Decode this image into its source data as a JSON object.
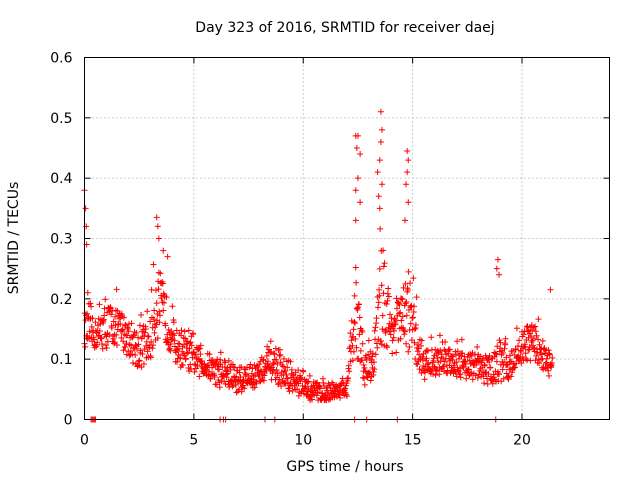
{
  "chart_data": {
    "type": "scatter",
    "title": "Day 323 of 2016, SRMTID for receiver daej",
    "xlabel": "GPS time / hours",
    "ylabel": "SRMTID / TECUs",
    "xlim": [
      0,
      24
    ],
    "ylim": [
      0,
      0.6
    ],
    "x_ticks": [
      0,
      5,
      10,
      15,
      20
    ],
    "y_ticks": [
      0,
      0.1,
      0.2,
      0.3,
      0.4,
      0.5,
      0.6
    ],
    "x_tick_labels": [
      "0",
      "5",
      "10",
      "15",
      "20"
    ],
    "y_tick_labels": [
      "0",
      "0.1",
      "0.2",
      "0.3",
      "0.4",
      "0.5",
      "0.6"
    ],
    "grid": true,
    "marker": "+",
    "color": "#ff0000",
    "series": [
      {
        "name": "SRMTID",
        "envelope": [
          {
            "x": 0.0,
            "lo": 0.1,
            "hi": 0.2
          },
          {
            "x": 0.5,
            "lo": 0.1,
            "hi": 0.18
          },
          {
            "x": 1.0,
            "lo": 0.09,
            "hi": 0.22
          },
          {
            "x": 1.5,
            "lo": 0.1,
            "hi": 0.21
          },
          {
            "x": 2.0,
            "lo": 0.08,
            "hi": 0.19
          },
          {
            "x": 2.5,
            "lo": 0.06,
            "hi": 0.17
          },
          {
            "x": 3.0,
            "lo": 0.07,
            "hi": 0.19
          },
          {
            "x": 3.3,
            "lo": 0.09,
            "hi": 0.31
          },
          {
            "x": 3.7,
            "lo": 0.1,
            "hi": 0.24
          },
          {
            "x": 4.2,
            "lo": 0.07,
            "hi": 0.17
          },
          {
            "x": 5.0,
            "lo": 0.06,
            "hi": 0.14
          },
          {
            "x": 5.5,
            "lo": 0.05,
            "hi": 0.13
          },
          {
            "x": 6.0,
            "lo": 0.04,
            "hi": 0.12
          },
          {
            "x": 6.5,
            "lo": 0.03,
            "hi": 0.12
          },
          {
            "x": 7.0,
            "lo": 0.03,
            "hi": 0.1
          },
          {
            "x": 8.0,
            "lo": 0.04,
            "hi": 0.11
          },
          {
            "x": 8.5,
            "lo": 0.05,
            "hi": 0.13
          },
          {
            "x": 9.0,
            "lo": 0.04,
            "hi": 0.11
          },
          {
            "x": 10.0,
            "lo": 0.02,
            "hi": 0.08
          },
          {
            "x": 11.0,
            "lo": 0.02,
            "hi": 0.07
          },
          {
            "x": 12.0,
            "lo": 0.03,
            "hi": 0.07
          },
          {
            "x": 12.4,
            "lo": 0.06,
            "hi": 0.3
          },
          {
            "x": 12.8,
            "lo": 0.04,
            "hi": 0.12
          },
          {
            "x": 13.2,
            "lo": 0.05,
            "hi": 0.14
          },
          {
            "x": 13.6,
            "lo": 0.06,
            "hi": 0.36
          },
          {
            "x": 14.0,
            "lo": 0.08,
            "hi": 0.22
          },
          {
            "x": 14.4,
            "lo": 0.08,
            "hi": 0.24
          },
          {
            "x": 14.8,
            "lo": 0.07,
            "hi": 0.28
          },
          {
            "x": 15.5,
            "lo": 0.05,
            "hi": 0.13
          },
          {
            "x": 16.5,
            "lo": 0.06,
            "hi": 0.14
          },
          {
            "x": 17.5,
            "lo": 0.05,
            "hi": 0.13
          },
          {
            "x": 18.5,
            "lo": 0.04,
            "hi": 0.12
          },
          {
            "x": 19.0,
            "lo": 0.04,
            "hi": 0.14
          },
          {
            "x": 19.5,
            "lo": 0.05,
            "hi": 0.13
          },
          {
            "x": 20.0,
            "lo": 0.07,
            "hi": 0.17
          },
          {
            "x": 20.5,
            "lo": 0.08,
            "hi": 0.18
          },
          {
            "x": 21.0,
            "lo": 0.06,
            "hi": 0.15
          },
          {
            "x": 21.4,
            "lo": 0.05,
            "hi": 0.12
          }
        ],
        "outliers": [
          [
            0.0,
            0.38
          ],
          [
            0.05,
            0.35
          ],
          [
            0.08,
            0.32
          ],
          [
            0.1,
            0.29
          ],
          [
            0.15,
            0.21
          ],
          [
            3.3,
            0.335
          ],
          [
            3.35,
            0.32
          ],
          [
            3.4,
            0.3
          ],
          [
            3.6,
            0.28
          ],
          [
            3.8,
            0.27
          ],
          [
            12.4,
            0.47
          ],
          [
            12.5,
            0.47
          ],
          [
            12.45,
            0.45
          ],
          [
            12.6,
            0.44
          ],
          [
            12.5,
            0.4
          ],
          [
            12.4,
            0.38
          ],
          [
            12.6,
            0.36
          ],
          [
            12.4,
            0.33
          ],
          [
            13.55,
            0.51
          ],
          [
            13.6,
            0.48
          ],
          [
            13.55,
            0.46
          ],
          [
            13.5,
            0.43
          ],
          [
            13.4,
            0.41
          ],
          [
            13.6,
            0.39
          ],
          [
            13.45,
            0.37
          ],
          [
            13.5,
            0.35
          ],
          [
            14.75,
            0.445
          ],
          [
            14.8,
            0.43
          ],
          [
            14.75,
            0.41
          ],
          [
            14.7,
            0.39
          ],
          [
            14.8,
            0.36
          ],
          [
            14.65,
            0.33
          ],
          [
            18.9,
            0.265
          ],
          [
            18.85,
            0.25
          ],
          [
            18.95,
            0.24
          ],
          [
            21.3,
            0.215
          ]
        ],
        "zero_values": [
          0.3,
          0.35,
          0.4,
          0.45,
          0.5,
          6.2,
          6.35,
          6.45,
          8.25,
          8.7,
          12.35,
          12.9,
          14.3,
          18.8
        ]
      }
    ]
  }
}
